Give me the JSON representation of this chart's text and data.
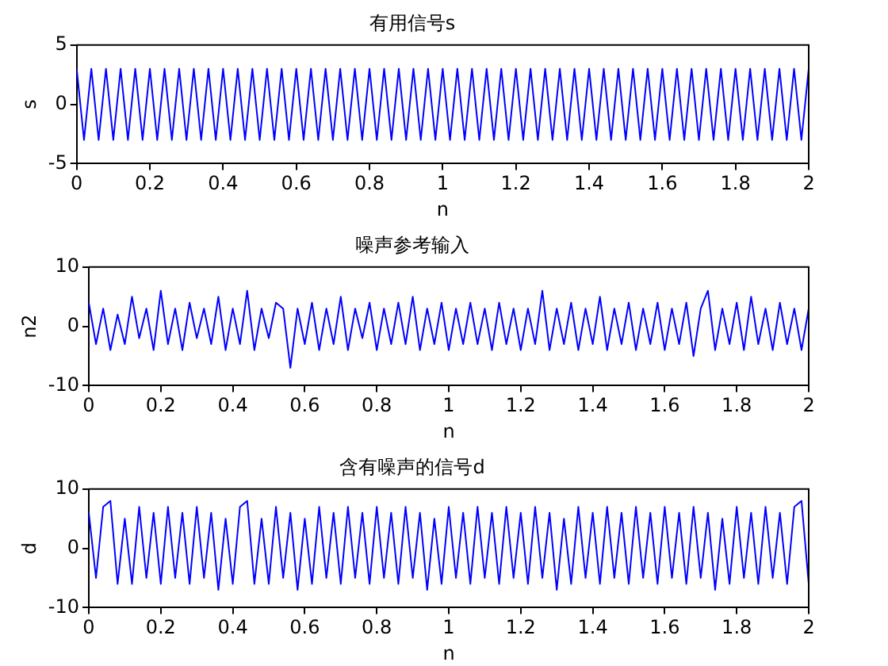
{
  "chart_data": [
    {
      "type": "line",
      "title": "有用信号s",
      "xlabel": "n",
      "ylabel": "s",
      "color": "#0000ff",
      "marker": "none",
      "grid": false,
      "legend": false,
      "xlim": [
        0,
        2
      ],
      "xticks": [
        0,
        0.2,
        0.4,
        0.6,
        0.8,
        1,
        1.2,
        1.4,
        1.6,
        1.8,
        2
      ],
      "ylim": [
        -5,
        5
      ],
      "yticks": [
        -5,
        0,
        5
      ],
      "x": [
        0,
        0.02,
        0.04,
        0.06,
        0.08,
        0.1,
        0.12,
        0.14,
        0.16,
        0.18,
        0.2,
        0.22,
        0.24,
        0.26,
        0.28,
        0.3,
        0.32,
        0.34,
        0.36,
        0.38,
        0.4,
        0.42,
        0.44,
        0.46,
        0.48,
        0.5,
        0.52,
        0.54,
        0.56,
        0.58,
        0.6,
        0.62,
        0.64,
        0.66,
        0.68,
        0.7,
        0.72,
        0.74,
        0.76,
        0.78,
        0.8,
        0.82,
        0.84,
        0.86,
        0.88,
        0.9,
        0.92,
        0.94,
        0.96,
        0.98,
        1,
        1.02,
        1.04,
        1.06,
        1.08,
        1.1,
        1.12,
        1.14,
        1.16,
        1.18,
        1.2,
        1.22,
        1.24,
        1.26,
        1.28,
        1.3,
        1.32,
        1.34,
        1.36,
        1.38,
        1.4,
        1.42,
        1.44,
        1.46,
        1.48,
        1.5,
        1.52,
        1.54,
        1.56,
        1.58,
        1.6,
        1.62,
        1.64,
        1.66,
        1.68,
        1.7,
        1.72,
        1.74,
        1.76,
        1.78,
        1.8,
        1.82,
        1.84,
        1.86,
        1.88,
        1.9,
        1.92,
        1.94,
        1.96,
        1.98,
        2
      ],
      "values": [
        3,
        -3,
        3,
        -3,
        3,
        -3,
        3,
        -3,
        3,
        -3,
        3,
        -3,
        3,
        -3,
        3,
        -3,
        3,
        -3,
        3,
        -3,
        3,
        -3,
        3,
        -3,
        3,
        -3,
        3,
        -3,
        3,
        -3,
        3,
        -3,
        3,
        -3,
        3,
        -3,
        3,
        -3,
        3,
        -3,
        3,
        -3,
        3,
        -3,
        3,
        -3,
        3,
        -3,
        3,
        -3,
        3,
        -3,
        3,
        -3,
        3,
        -3,
        3,
        -3,
        3,
        -3,
        3,
        -3,
        3,
        -3,
        3,
        -3,
        3,
        -3,
        3,
        -3,
        3,
        -3,
        3,
        -3,
        3,
        -3,
        3,
        -3,
        3,
        -3,
        3,
        -3,
        3,
        -3,
        3,
        -3,
        3,
        -3,
        3,
        -3,
        3,
        -3,
        3,
        -3,
        3,
        -3,
        3,
        -3,
        3,
        -3,
        3
      ]
    },
    {
      "type": "line",
      "title": "噪声参考输入",
      "xlabel": "n",
      "ylabel": "n2",
      "color": "#0000ff",
      "marker": "none",
      "grid": false,
      "legend": false,
      "xlim": [
        0,
        2
      ],
      "xticks": [
        0,
        0.2,
        0.4,
        0.6,
        0.8,
        1,
        1.2,
        1.4,
        1.6,
        1.8,
        2
      ],
      "ylim": [
        -10,
        10
      ],
      "yticks": [
        -10,
        0,
        10
      ],
      "x": [
        0,
        0.02,
        0.04,
        0.06,
        0.08,
        0.1,
        0.12,
        0.14,
        0.16,
        0.18,
        0.2,
        0.22,
        0.24,
        0.26,
        0.28,
        0.3,
        0.32,
        0.34,
        0.36,
        0.38,
        0.4,
        0.42,
        0.44,
        0.46,
        0.48,
        0.5,
        0.52,
        0.54,
        0.56,
        0.58,
        0.6,
        0.62,
        0.64,
        0.66,
        0.68,
        0.7,
        0.72,
        0.74,
        0.76,
        0.78,
        0.8,
        0.82,
        0.84,
        0.86,
        0.88,
        0.9,
        0.92,
        0.94,
        0.96,
        0.98,
        1,
        1.02,
        1.04,
        1.06,
        1.08,
        1.1,
        1.12,
        1.14,
        1.16,
        1.18,
        1.2,
        1.22,
        1.24,
        1.26,
        1.28,
        1.3,
        1.32,
        1.34,
        1.36,
        1.38,
        1.4,
        1.42,
        1.44,
        1.46,
        1.48,
        1.5,
        1.52,
        1.54,
        1.56,
        1.58,
        1.6,
        1.62,
        1.64,
        1.66,
        1.68,
        1.7,
        1.72,
        1.74,
        1.76,
        1.78,
        1.8,
        1.82,
        1.84,
        1.86,
        1.88,
        1.9,
        1.92,
        1.94,
        1.96,
        1.98,
        2
      ],
      "values": [
        4,
        -3,
        3,
        -4,
        2,
        -3,
        5,
        -2,
        3,
        -4,
        6,
        -3,
        3,
        -4,
        4,
        -2,
        3,
        -3,
        5,
        -4,
        3,
        -3,
        6,
        -4,
        3,
        -2,
        4,
        3,
        -7,
        3,
        -3,
        4,
        -4,
        3,
        -3,
        5,
        -4,
        3,
        -2,
        4,
        -4,
        3,
        -3,
        4,
        -3,
        5,
        -4,
        3,
        -3,
        4,
        -4,
        3,
        -3,
        4,
        -3,
        3,
        -4,
        4,
        -3,
        3,
        -4,
        3,
        -3,
        6,
        -4,
        3,
        -3,
        4,
        -4,
        3,
        -3,
        5,
        -4,
        3,
        -3,
        4,
        -4,
        3,
        -3,
        4,
        -4,
        3,
        -3,
        4,
        -5,
        3,
        6,
        -4,
        3,
        -3,
        4,
        -4,
        5,
        -3,
        3,
        -4,
        4,
        -3,
        3,
        -4,
        3
      ]
    },
    {
      "type": "line",
      "title": "含有噪声的信号d",
      "xlabel": "n",
      "ylabel": "d",
      "color": "#0000ff",
      "marker": "none",
      "grid": false,
      "legend": false,
      "xlim": [
        0,
        2
      ],
      "xticks": [
        0,
        0.2,
        0.4,
        0.6,
        0.8,
        1,
        1.2,
        1.4,
        1.6,
        1.8,
        2
      ],
      "ylim": [
        -10,
        10
      ],
      "yticks": [
        -10,
        0,
        10
      ],
      "x": [
        0,
        0.02,
        0.04,
        0.06,
        0.08,
        0.1,
        0.12,
        0.14,
        0.16,
        0.18,
        0.2,
        0.22,
        0.24,
        0.26,
        0.28,
        0.3,
        0.32,
        0.34,
        0.36,
        0.38,
        0.4,
        0.42,
        0.44,
        0.46,
        0.48,
        0.5,
        0.52,
        0.54,
        0.56,
        0.58,
        0.6,
        0.62,
        0.64,
        0.66,
        0.68,
        0.7,
        0.72,
        0.74,
        0.76,
        0.78,
        0.8,
        0.82,
        0.84,
        0.86,
        0.88,
        0.9,
        0.92,
        0.94,
        0.96,
        0.98,
        1,
        1.02,
        1.04,
        1.06,
        1.08,
        1.1,
        1.12,
        1.14,
        1.16,
        1.18,
        1.2,
        1.22,
        1.24,
        1.26,
        1.28,
        1.3,
        1.32,
        1.34,
        1.36,
        1.38,
        1.4,
        1.42,
        1.44,
        1.46,
        1.48,
        1.5,
        1.52,
        1.54,
        1.56,
        1.58,
        1.6,
        1.62,
        1.64,
        1.66,
        1.68,
        1.7,
        1.72,
        1.74,
        1.76,
        1.78,
        1.8,
        1.82,
        1.84,
        1.86,
        1.88,
        1.9,
        1.92,
        1.94,
        1.96,
        1.98,
        2
      ],
      "values": [
        6,
        -5,
        7,
        8,
        -6,
        5,
        -6,
        7,
        -5,
        6,
        -6,
        7,
        -5,
        6,
        -6,
        7,
        -5,
        6,
        -7,
        5,
        -6,
        7,
        8,
        -6,
        5,
        -6,
        7,
        -5,
        6,
        -7,
        5,
        -6,
        7,
        -5,
        6,
        -6,
        7,
        -5,
        6,
        -6,
        7,
        -5,
        6,
        -6,
        7,
        -5,
        6,
        -7,
        5,
        -6,
        7,
        -5,
        6,
        -6,
        7,
        -5,
        6,
        -6,
        7,
        -5,
        6,
        -6,
        7,
        -5,
        6,
        -7,
        5,
        -6,
        7,
        -5,
        6,
        -6,
        7,
        -5,
        6,
        -6,
        7,
        -5,
        6,
        -6,
        7,
        -5,
        6,
        -6,
        7,
        -5,
        6,
        -7,
        5,
        -6,
        7,
        -5,
        6,
        -6,
        7,
        -5,
        6,
        -6,
        7,
        8,
        -6
      ]
    }
  ]
}
